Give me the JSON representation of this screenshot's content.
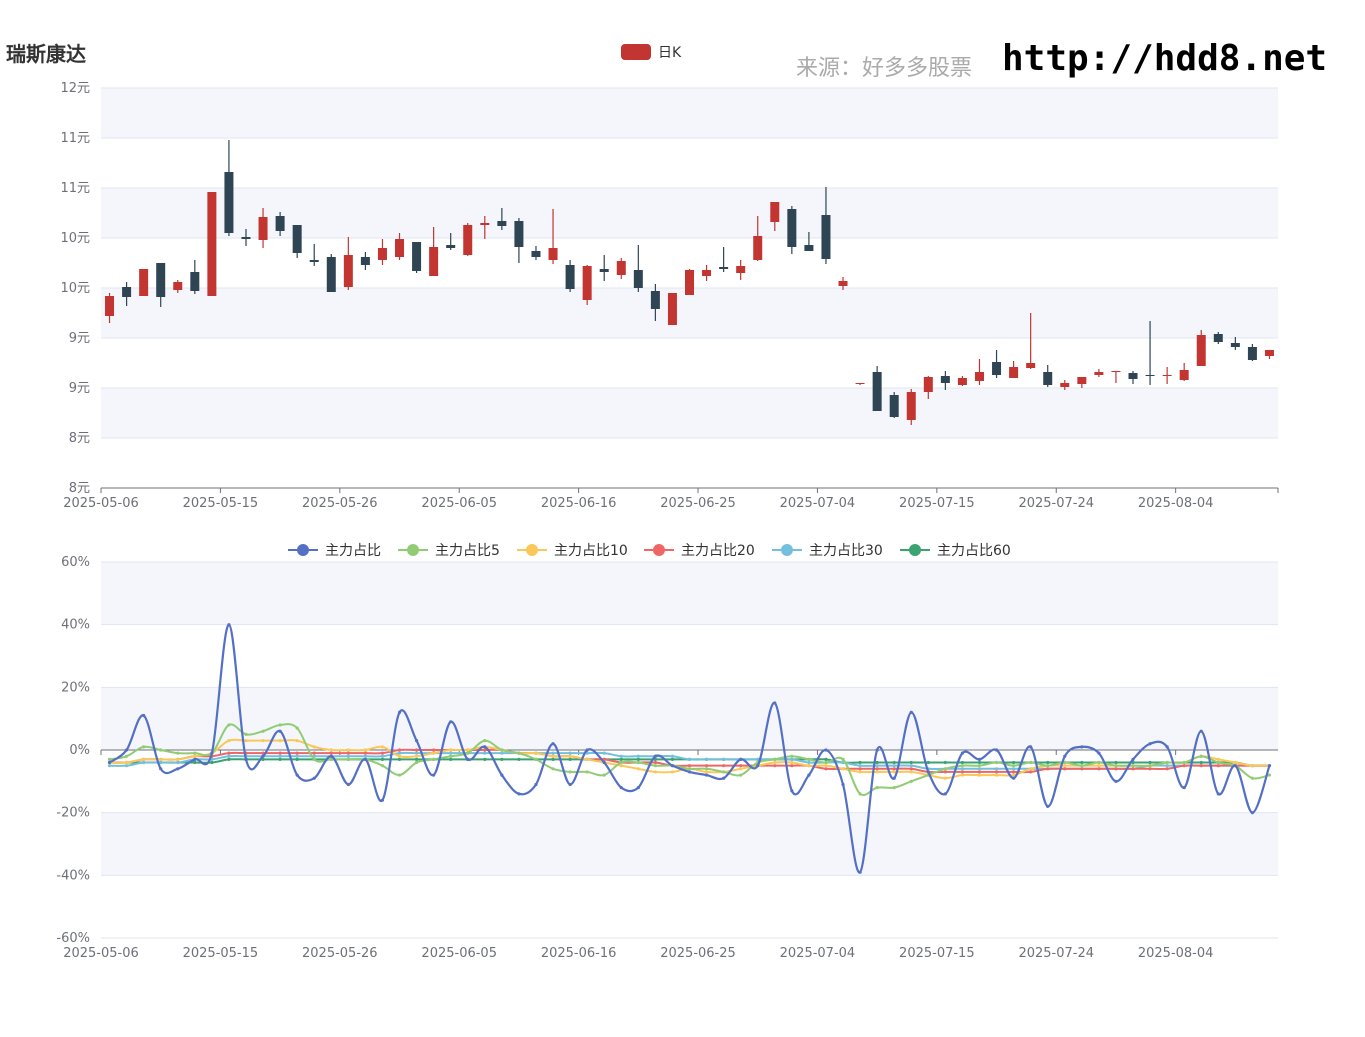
{
  "header": {
    "title": "瑞斯康达",
    "source": "来源：好多多股票",
    "url": "http://hdd8.net"
  },
  "colors": {
    "up": "#c23531",
    "down": "#2f4554",
    "band": "#f4f6fb",
    "grid": "#e0e6f1",
    "axis": "#6e7079"
  },
  "chart_data": [
    {
      "type": "candlestick",
      "legend": [
        "日K"
      ],
      "y_tick_labels": [
        "8元",
        "8元",
        "9元",
        "9元",
        "10元",
        "10元",
        "11元",
        "11元",
        "12元"
      ],
      "ylim": [
        8,
        12
      ],
      "x_tick_labels": [
        "2025-05-06",
        "2025-05-15",
        "2025-05-26",
        "2025-06-05",
        "2025-06-16",
        "2025-06-25",
        "2025-07-04",
        "2025-07-15",
        "2025-07-24",
        "2025-08-04"
      ],
      "dates": [
        "05-06",
        "05-07",
        "05-08",
        "05-09",
        "05-12",
        "05-13",
        "05-14",
        "05-15",
        "05-16",
        "05-19",
        "05-20",
        "05-21",
        "05-22",
        "05-23",
        "05-26",
        "05-27",
        "05-28",
        "05-29",
        "05-30",
        "06-03",
        "06-04",
        "06-05",
        "06-06",
        "06-09",
        "06-10",
        "06-11",
        "06-12",
        "06-13",
        "06-16",
        "06-17",
        "06-18",
        "06-19",
        "06-20",
        "06-23",
        "06-24",
        "06-25",
        "06-26",
        "06-27",
        "06-30",
        "07-01",
        "07-02",
        "07-03",
        "07-04",
        "07-07",
        "07-08",
        "07-09",
        "07-10",
        "07-11",
        "07-14",
        "07-15",
        "07-16",
        "07-17",
        "07-18",
        "07-21",
        "07-22",
        "07-23",
        "07-24",
        "07-25",
        "07-28",
        "07-29",
        "07-30",
        "07-31",
        "08-01",
        "08-04",
        "08-05",
        "08-06",
        "08-07",
        "08-08",
        "08-11"
      ],
      "ohlc": [
        [
          9.72,
          9.92,
          9.65,
          9.95
        ],
        [
          10.01,
          9.91,
          9.82,
          10.06
        ],
        [
          9.92,
          10.19,
          9.92,
          10.19
        ],
        [
          10.25,
          9.91,
          9.81,
          10.25
        ],
        [
          9.98,
          10.06,
          9.95,
          10.08
        ],
        [
          10.16,
          9.97,
          9.94,
          10.28
        ],
        [
          9.92,
          10.96,
          9.92,
          10.96
        ],
        [
          11.16,
          10.55,
          10.52,
          11.48
        ],
        [
          10.51,
          10.49,
          10.42,
          10.59
        ],
        [
          10.48,
          10.71,
          10.4,
          10.8
        ],
        [
          10.72,
          10.57,
          10.52,
          10.76
        ],
        [
          10.63,
          10.35,
          10.3,
          10.63
        ],
        [
          10.28,
          10.26,
          10.22,
          10.44
        ],
        [
          10.31,
          9.96,
          9.96,
          10.34
        ],
        [
          10.01,
          10.33,
          9.98,
          10.51
        ],
        [
          10.31,
          10.23,
          10.18,
          10.36
        ],
        [
          10.28,
          10.4,
          10.23,
          10.49
        ],
        [
          10.31,
          10.49,
          10.28,
          10.55
        ],
        [
          10.46,
          10.17,
          10.15,
          10.46
        ],
        [
          10.12,
          10.41,
          10.12,
          10.61
        ],
        [
          10.43,
          10.4,
          10.38,
          10.55
        ],
        [
          10.33,
          10.63,
          10.32,
          10.65
        ],
        [
          10.63,
          10.65,
          10.49,
          10.72
        ],
        [
          10.67,
          10.62,
          10.58,
          10.8
        ],
        [
          10.67,
          10.41,
          10.25,
          10.7
        ],
        [
          10.37,
          10.31,
          10.28,
          10.42
        ],
        [
          10.28,
          10.4,
          10.24,
          10.79
        ],
        [
          10.23,
          9.99,
          9.96,
          10.28
        ],
        [
          9.88,
          10.22,
          9.83,
          10.23
        ],
        [
          10.19,
          10.16,
          10.07,
          10.33
        ],
        [
          10.13,
          10.27,
          10.09,
          10.3
        ],
        [
          10.18,
          10.0,
          9.96,
          10.43
        ],
        [
          9.97,
          9.79,
          9.67,
          10.04
        ],
        [
          9.63,
          9.95,
          9.63,
          9.95
        ],
        [
          9.93,
          10.18,
          9.93,
          10.19
        ],
        [
          10.12,
          10.18,
          10.07,
          10.23
        ],
        [
          10.21,
          10.19,
          10.16,
          10.41
        ],
        [
          10.15,
          10.22,
          10.08,
          10.28
        ],
        [
          10.28,
          10.52,
          10.27,
          10.72
        ],
        [
          10.66,
          10.86,
          10.57,
          10.86
        ],
        [
          10.79,
          10.41,
          10.34,
          10.82
        ],
        [
          10.43,
          10.37,
          10.37,
          10.56
        ],
        [
          10.73,
          10.29,
          10.24,
          11.01
        ],
        [
          10.02,
          10.07,
          9.98,
          10.11
        ],
        [
          9.05,
          9.05,
          9.03,
          9.05
        ],
        [
          9.16,
          8.77,
          8.77,
          9.22
        ],
        [
          8.93,
          8.71,
          8.7,
          8.96
        ],
        [
          8.68,
          8.96,
          8.63,
          8.99
        ],
        [
          8.96,
          9.11,
          8.89,
          9.12
        ],
        [
          9.12,
          9.05,
          8.98,
          9.17
        ],
        [
          9.03,
          9.1,
          9.02,
          9.12
        ],
        [
          9.07,
          9.16,
          9.03,
          9.29
        ],
        [
          9.26,
          9.13,
          9.1,
          9.38
        ],
        [
          9.1,
          9.21,
          9.1,
          9.27
        ],
        [
          9.2,
          9.25,
          9.19,
          9.75
        ],
        [
          9.16,
          9.03,
          9.01,
          9.23
        ],
        [
          9.01,
          9.05,
          8.98,
          9.08
        ],
        [
          9.04,
          9.11,
          9.0,
          9.11
        ],
        [
          9.13,
          9.16,
          9.11,
          9.19
        ],
        [
          9.17,
          9.17,
          9.05,
          9.17
        ],
        [
          9.15,
          9.09,
          9.04,
          9.17
        ],
        [
          9.13,
          9.12,
          9.03,
          9.67
        ],
        [
          9.12,
          9.13,
          9.04,
          9.21
        ],
        [
          9.08,
          9.18,
          9.07,
          9.25
        ],
        [
          9.22,
          9.53,
          9.22,
          9.58
        ],
        [
          9.54,
          9.46,
          9.44,
          9.56
        ],
        [
          9.45,
          9.41,
          9.38,
          9.51
        ],
        [
          9.41,
          9.28,
          9.27,
          9.44
        ],
        [
          9.32,
          9.38,
          9.29,
          9.38
        ]
      ]
    },
    {
      "type": "line",
      "y_tick_labels": [
        "-60%",
        "-40%",
        "-20%",
        "0%",
        "20%",
        "40%",
        "60%"
      ],
      "ylim": [
        -60,
        60
      ],
      "x_tick_labels": [
        "2025-05-06",
        "2025-05-15",
        "2025-05-26",
        "2025-06-05",
        "2025-06-16",
        "2025-06-25",
        "2025-07-04",
        "2025-07-15",
        "2025-07-24",
        "2025-08-04"
      ],
      "series": [
        {
          "name": "主力占比",
          "color": "#5470c6",
          "values": [
            -4,
            0,
            11,
            -6,
            -6,
            -3,
            -1,
            40,
            -3,
            -2,
            6,
            -8,
            -9,
            -2,
            -11,
            -3,
            -16,
            12,
            3,
            -8,
            9,
            -3,
            1,
            -8,
            -14,
            -11,
            2,
            -11,
            0,
            -4,
            -12,
            -12,
            -2,
            -5,
            -7,
            -8,
            -9,
            -3,
            -5,
            15,
            -13,
            -8,
            0,
            -11,
            -39,
            0,
            -9,
            12,
            -7,
            -14,
            -1,
            -3,
            0,
            -9,
            1,
            -18,
            -2,
            1,
            -1,
            -10,
            -3,
            2,
            1,
            -12,
            6,
            -14,
            -5,
            -20,
            -5
          ]
        },
        {
          "name": "主力占比5",
          "color": "#91cc75",
          "values": [
            -3,
            -2,
            1,
            0,
            -1,
            -1,
            -1,
            8,
            5,
            6,
            8,
            7,
            -3,
            -3,
            -3,
            -3,
            -5,
            -8,
            -4,
            -3,
            -2,
            -1,
            3,
            0,
            -1,
            -3,
            -6,
            -7,
            -7,
            -8,
            -4,
            -4,
            -5,
            -5,
            -6,
            -6,
            -7,
            -8,
            -4,
            -3,
            -2,
            -3,
            -4,
            -3,
            -14,
            -12,
            -12,
            -10,
            -8,
            -6,
            -5,
            -5,
            -4,
            -5,
            -4,
            -5,
            -4,
            -5,
            -4,
            -5,
            -5,
            -5,
            -4,
            -4,
            -2,
            -4,
            -5,
            -9,
            -8
          ]
        },
        {
          "name": "主力占比10",
          "color": "#fac858",
          "values": [
            -4,
            -4,
            -3,
            -3,
            -3,
            -2,
            -1,
            3,
            3,
            3,
            3,
            3,
            1,
            0,
            0,
            0,
            1,
            -2,
            -2,
            -1,
            0,
            0,
            1,
            0,
            -1,
            -1,
            -2,
            -2,
            -3,
            -4,
            -5,
            -6,
            -7,
            -7,
            -6,
            -7,
            -7,
            -6,
            -5,
            -4,
            -4,
            -5,
            -5,
            -6,
            -7,
            -7,
            -7,
            -7,
            -8,
            -9,
            -8,
            -8,
            -8,
            -8,
            -6,
            -5,
            -5,
            -5,
            -5,
            -5,
            -5,
            -5,
            -4,
            -4,
            -2,
            -3,
            -4,
            -5,
            -5
          ]
        },
        {
          "name": "主力占比20",
          "color": "#ee6666",
          "values": [
            -4,
            -4,
            -3,
            -3,
            -3,
            -2,
            -2,
            -1,
            -1,
            -1,
            -1,
            -1,
            -1,
            -1,
            -1,
            -1,
            -1,
            0,
            0,
            0,
            0,
            0,
            0,
            0,
            -1,
            -1,
            -2,
            -2,
            -3,
            -3,
            -4,
            -4,
            -4,
            -5,
            -5,
            -5,
            -5,
            -5,
            -5,
            -5,
            -5,
            -5,
            -6,
            -6,
            -6,
            -6,
            -6,
            -6,
            -7,
            -7,
            -7,
            -7,
            -7,
            -7,
            -7,
            -6,
            -6,
            -6,
            -6,
            -6,
            -6,
            -6,
            -6,
            -5,
            -5,
            -5,
            -5,
            -5,
            -5
          ]
        },
        {
          "name": "主力占比30",
          "color": "#73c0de",
          "values": [
            -5,
            -5,
            -4,
            -4,
            -4,
            -3,
            -3,
            -2,
            -2,
            -2,
            -2,
            -2,
            -2,
            -2,
            -2,
            -2,
            -2,
            -1,
            -1,
            -1,
            -1,
            -1,
            -1,
            -1,
            -1,
            -1,
            -1,
            -1,
            -1,
            -1,
            -2,
            -2,
            -2,
            -2,
            -3,
            -3,
            -3,
            -3,
            -3,
            -3,
            -3,
            -4,
            -4,
            -4,
            -5,
            -5,
            -5,
            -5,
            -6,
            -6,
            -6,
            -6,
            -6,
            -6,
            -6,
            -6,
            -6,
            -6,
            -6,
            -6,
            -6,
            -5,
            -5,
            -5,
            -5,
            -5,
            -5,
            -5,
            -5
          ]
        },
        {
          "name": "主力占比60",
          "color": "#3ba272",
          "values": [
            -4,
            -4,
            -4,
            -4,
            -4,
            -4,
            -4,
            -3,
            -3,
            -3,
            -3,
            -3,
            -3,
            -3,
            -3,
            -3,
            -3,
            -3,
            -3,
            -3,
            -3,
            -3,
            -3,
            -3,
            -3,
            -3,
            -3,
            -3,
            -3,
            -3,
            -3,
            -3,
            -3,
            -3,
            -3,
            -3,
            -3,
            -3,
            -3,
            -3,
            -3,
            -3,
            -3,
            -4,
            -4,
            -4,
            -4,
            -4,
            -4,
            -4,
            -4,
            -4,
            -4,
            -4,
            -4,
            -4,
            -4,
            -4,
            -4,
            -4,
            -4,
            -4,
            -4,
            -4,
            -4,
            -4,
            -4,
            -5,
            -5
          ]
        }
      ]
    }
  ]
}
